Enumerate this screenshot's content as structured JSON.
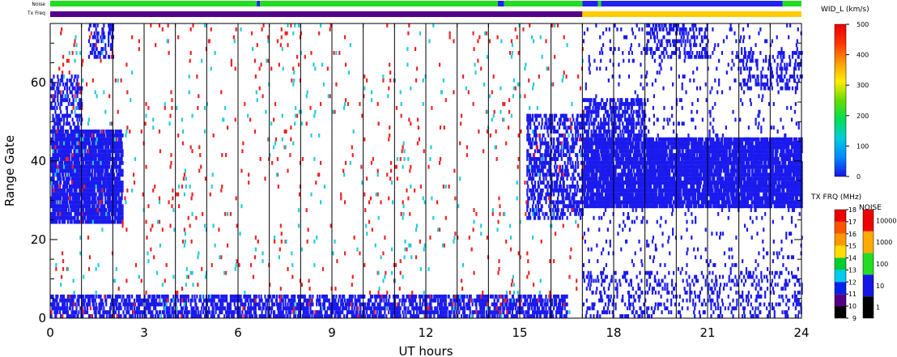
{
  "chart_data": {
    "type": "heatmap",
    "title": "",
    "xlabel": "UT hours",
    "ylabel": "Range Gate",
    "xlim": [
      0,
      24
    ],
    "ylim": [
      0,
      75
    ],
    "x_ticks": [
      0,
      3,
      6,
      9,
      12,
      15,
      18,
      21,
      24
    ],
    "y_ticks": [
      0,
      20,
      40,
      60
    ],
    "x_minor_step": 1,
    "y_minor_step": 5,
    "grid": "vertical lines at each UT hour",
    "top_bars": {
      "noise_label": "Noise",
      "txfreq_label": "Tx Freq",
      "noise_segments": [
        {
          "from": 0,
          "to": 6.6,
          "color": "#22dd22"
        },
        {
          "from": 6.6,
          "to": 6.7,
          "color": "#2222ee"
        },
        {
          "from": 6.7,
          "to": 14.3,
          "color": "#22dd22"
        },
        {
          "from": 14.3,
          "to": 14.5,
          "color": "#2222ee"
        },
        {
          "from": 14.5,
          "to": 17.0,
          "color": "#22dd22"
        },
        {
          "from": 17.0,
          "to": 17.5,
          "color": "#2222ee"
        },
        {
          "from": 17.5,
          "to": 17.6,
          "color": "#22dd22"
        },
        {
          "from": 17.6,
          "to": 23.4,
          "color": "#2222ee"
        },
        {
          "from": 23.4,
          "to": 24,
          "color": "#22dd22"
        }
      ],
      "txfreq_segments": [
        {
          "from": 0,
          "to": 17.0,
          "color": "#550088"
        },
        {
          "from": 17.0,
          "to": 24,
          "color": "#ffcc00"
        }
      ]
    },
    "scatter_regions": [
      {
        "t0": 0.0,
        "t1": 2.3,
        "g0": 24,
        "g1": 48,
        "color": "#1a1aee",
        "density": 0.7
      },
      {
        "t0": 0.0,
        "t1": 1.0,
        "g0": 48,
        "g1": 62,
        "color": "#1a1aee",
        "density": 0.35
      },
      {
        "t0": 1.2,
        "t1": 2.0,
        "g0": 66,
        "g1": 75,
        "color": "#1a1aee",
        "density": 0.3
      },
      {
        "t0": 15.2,
        "t1": 17.0,
        "g0": 25,
        "g1": 52,
        "color": "#1a1aee",
        "density": 0.35
      },
      {
        "t0": 17.0,
        "t1": 24.0,
        "g0": 28,
        "g1": 46,
        "color": "#1a1aee",
        "density": 0.75
      },
      {
        "t0": 17.0,
        "t1": 19.0,
        "g0": 46,
        "g1": 56,
        "color": "#1a1aee",
        "density": 0.4
      },
      {
        "t0": 19.0,
        "t1": 21.0,
        "g0": 66,
        "g1": 75,
        "color": "#1a1aee",
        "density": 0.25
      },
      {
        "t0": 22.0,
        "t1": 24.0,
        "g0": 58,
        "g1": 68,
        "color": "#1a1aee",
        "density": 0.2
      },
      {
        "t0": 0.0,
        "t1": 16.5,
        "g0": 0,
        "g1": 6,
        "color": "#1a1aee",
        "density": 0.45
      },
      {
        "t0": 17.0,
        "t1": 24.0,
        "g0": 0,
        "g1": 12,
        "color": "#1a1aee",
        "density": 0.12
      },
      {
        "t0": 0.0,
        "t1": 17.0,
        "g0": 0,
        "g1": 75,
        "color": "#ee2222",
        "density": 0.012
      },
      {
        "t0": 0.0,
        "t1": 17.0,
        "g0": 0,
        "g1": 75,
        "color": "#22ccdd",
        "density": 0.008
      },
      {
        "t0": 17.0,
        "t1": 24.0,
        "g0": 0,
        "g1": 75,
        "color": "#1a1aee",
        "density": 0.04
      }
    ],
    "colorbars": [
      {
        "label": "WID_L (km/s)",
        "ticks": [
          "500",
          "400",
          "300",
          "200",
          "100",
          "0"
        ],
        "range": [
          0,
          500
        ],
        "colors": [
          "#1515e8",
          "#0088ff",
          "#00ccdd",
          "#00dd55",
          "#66dd00",
          "#ffee00",
          "#ff9900",
          "#ff3300",
          "#ee0000"
        ]
      },
      {
        "label": "TX FRQ (MHz)",
        "ticks": [
          "18",
          "17",
          "16",
          "15",
          "14",
          "13",
          "12",
          "11",
          "10",
          "9"
        ],
        "blocks": [
          "#ee0000",
          "#ff5500",
          "#ff9900",
          "#ffdd00",
          "#00cc33",
          "#00ccee",
          "#0022ee",
          "#550088",
          "#000000"
        ]
      },
      {
        "label": "NOISE",
        "ticks": [
          "10000",
          "1000",
          "100",
          "10",
          "1"
        ],
        "blocks": [
          "#ee0000",
          "#ffaa00",
          "#22dd22",
          "#1515e8",
          "#000000"
        ]
      }
    ]
  }
}
